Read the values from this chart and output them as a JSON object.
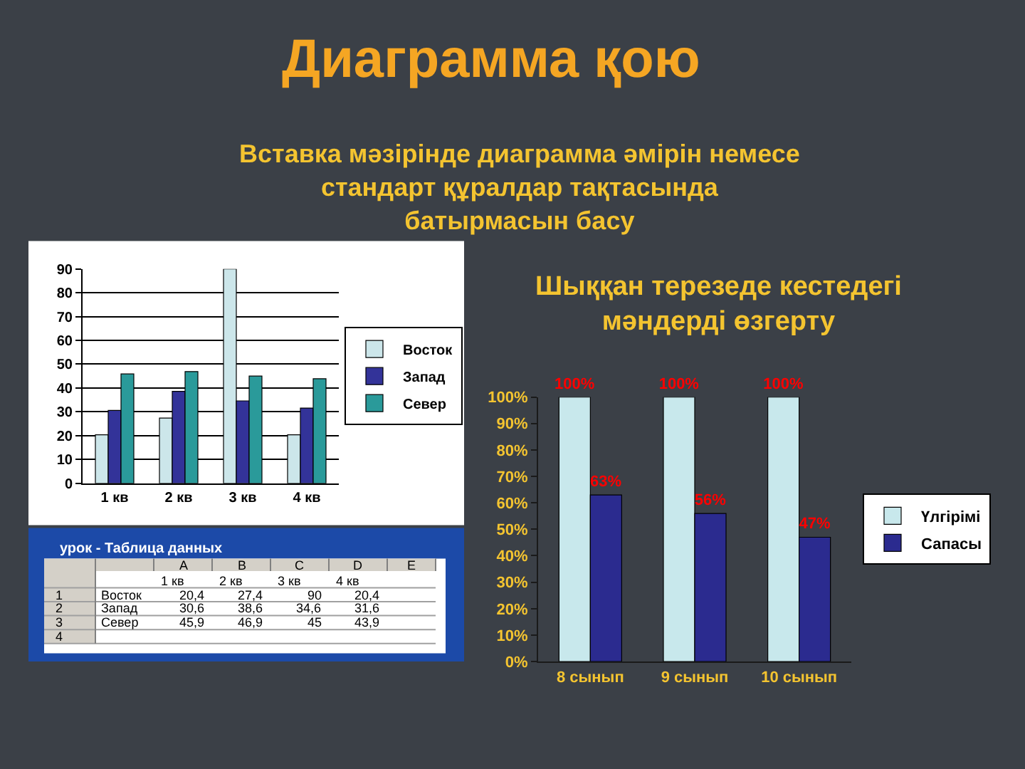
{
  "chart_data": [
    {
      "type": "bar",
      "title": "Диаграмма қою",
      "subtitle": "Вставка мәзірінде диаграмма әмірін немесе\nстандарт құралдар тақтасында\nбатырмасын басу",
      "categories": [
        "1 кв",
        "2 кв",
        "3 кв",
        "4 кв"
      ],
      "series": [
        {
          "name": "Восток",
          "color": "#cce6ea",
          "values": [
            20.4,
            27.4,
            90,
            20.4
          ]
        },
        {
          "name": "Запад",
          "color": "#333399",
          "values": [
            30.6,
            38.6,
            34.6,
            31.6
          ]
        },
        {
          "name": "Север",
          "color": "#2a9a9a",
          "values": [
            45.9,
            46.9,
            45,
            43.9
          ]
        }
      ],
      "ylim": [
        0,
        90
      ],
      "yticks": [
        0,
        10,
        20,
        30,
        40,
        50,
        60,
        70,
        80,
        90
      ],
      "grid": "y",
      "legend": "right",
      "annotations": [
        "урок - Таблица данных",
        "A",
        "B",
        "C",
        "D",
        "E",
        "1",
        "2",
        "3",
        "4",
        "20,4",
        "27,4",
        "90",
        "20,4",
        "30,6",
        "38,6",
        "34,6",
        "31,6",
        "45,9",
        "46,9",
        "45",
        "43,9"
      ]
    },
    {
      "type": "bar",
      "title": "Шыққан терезеде кестедегі\nмәндерді өзгерту",
      "categories": [
        "8 сынып",
        "9 сынып",
        "10 сынып"
      ],
      "series": [
        {
          "name": "Үлгірімі",
          "color": "#c8e8ec",
          "values": [
            100,
            100,
            100
          ],
          "value_labels": [
            "100%",
            "100%",
            "100%"
          ]
        },
        {
          "name": "Сапасы",
          "color": "#2b2b8f",
          "values": [
            63,
            56,
            47
          ],
          "value_labels": [
            "63%",
            "56%",
            "47%"
          ]
        }
      ],
      "ylim": [
        0,
        100
      ],
      "yticks": [
        {
          "value": 0,
          "label": "0%"
        },
        {
          "value": 10,
          "label": "10%"
        },
        {
          "value": 20,
          "label": "20%"
        },
        {
          "value": 30,
          "label": "30%"
        },
        {
          "value": 40,
          "label": "40%"
        },
        {
          "value": 50,
          "label": "50%"
        },
        {
          "value": 60,
          "label": "60%"
        },
        {
          "value": 70,
          "label": "70%"
        },
        {
          "value": 80,
          "label": "80%"
        },
        {
          "value": 90,
          "label": "90%"
        },
        {
          "value": 100,
          "label": "100%"
        }
      ],
      "grid": false,
      "legend": "right"
    }
  ]
}
